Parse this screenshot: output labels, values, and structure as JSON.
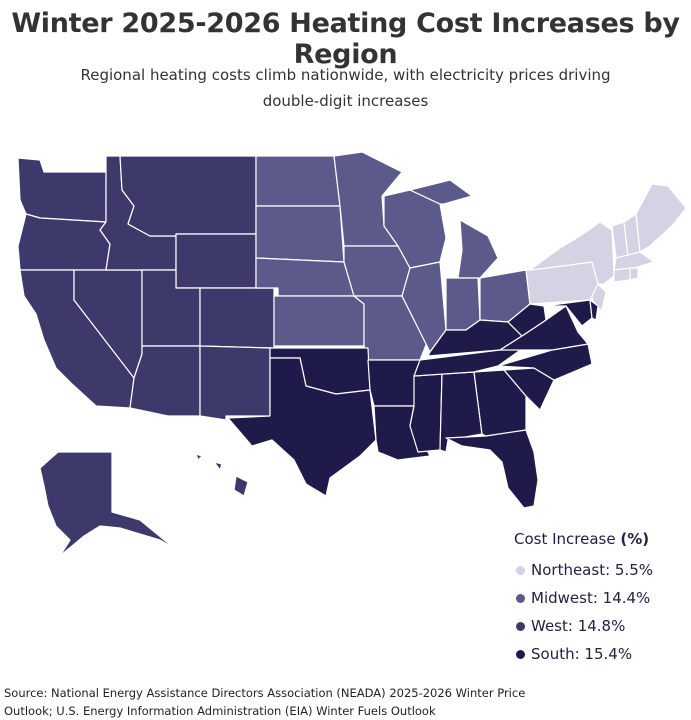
{
  "title": "Winter 2025-2026 Heating Cost Increases by Region",
  "subtitle": "Regional heating costs climb nationwide, with electricity prices driving double-digit increases",
  "legend": {
    "title_text": "Cost Increase ",
    "title_unit": "(%)",
    "items": [
      {
        "region": "Northeast",
        "value": 5.5,
        "label": "Northeast: 5.5%",
        "color": "#d3d3e3"
      },
      {
        "region": "Midwest",
        "value": 14.4,
        "label": "Midwest: 14.4%",
        "color": "#5c5a8a"
      },
      {
        "region": "West",
        "value": 14.8,
        "label": "West: 14.8%",
        "color": "#3d3a6b"
      },
      {
        "region": "South",
        "value": 15.4,
        "label": "South: 15.4%",
        "color": "#1e1a4a"
      }
    ]
  },
  "source": "Source: National Energy Assistance Directors Association (NEADA) 2025-2026 Winter Price Outlook; U.S. Energy Information Administration (EIA) Winter Fuels Outlook",
  "region_colors": {
    "Northeast": "#d3d3e3",
    "Midwest": "#5c5a8a",
    "West": "#3d3a6b",
    "South": "#1e1a4a"
  }
}
